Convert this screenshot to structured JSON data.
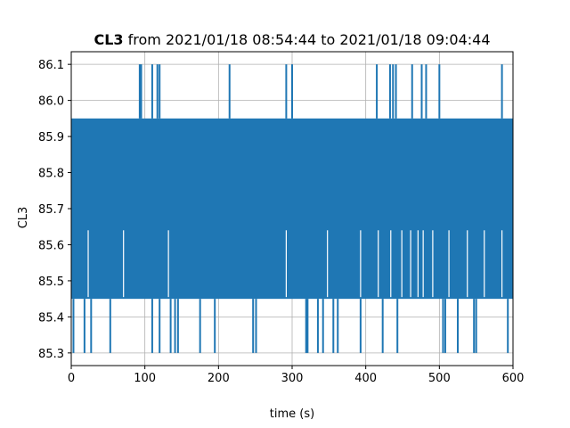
{
  "chart_data": {
    "type": "line",
    "title_bold": "CL3",
    "title_rest": " from 2021/01/18 08:54:44 to 2021/01/18 09:04:44",
    "xlabel": "time (s)",
    "ylabel": "CL3",
    "xlim": [
      0,
      600
    ],
    "ylim": [
      85.265,
      86.135
    ],
    "xticks": [
      0,
      100,
      200,
      300,
      400,
      500,
      600
    ],
    "yticks": [
      85.3,
      85.4,
      85.5,
      85.6,
      85.7,
      85.8,
      85.9,
      86.0,
      86.1
    ],
    "grid": true,
    "series_color": "#1f77b4",
    "band": {
      "low": 85.45,
      "high": 85.95
    },
    "spikes_up": [
      93,
      95,
      110,
      117,
      120,
      215,
      292,
      300,
      415,
      433,
      437,
      441,
      463,
      476,
      482,
      500,
      585
    ],
    "drops_low": [
      3,
      18,
      27,
      53,
      110,
      120,
      135,
      141,
      145,
      175,
      195,
      247,
      251,
      319,
      321,
      335,
      342,
      356,
      362,
      393,
      423,
      443,
      505,
      508,
      525,
      547,
      550,
      593
    ],
    "drops_mid": [
      23,
      71,
      132,
      292,
      348,
      393,
      417,
      434,
      449,
      461,
      471,
      478,
      491,
      513,
      538,
      561,
      585
    ]
  }
}
